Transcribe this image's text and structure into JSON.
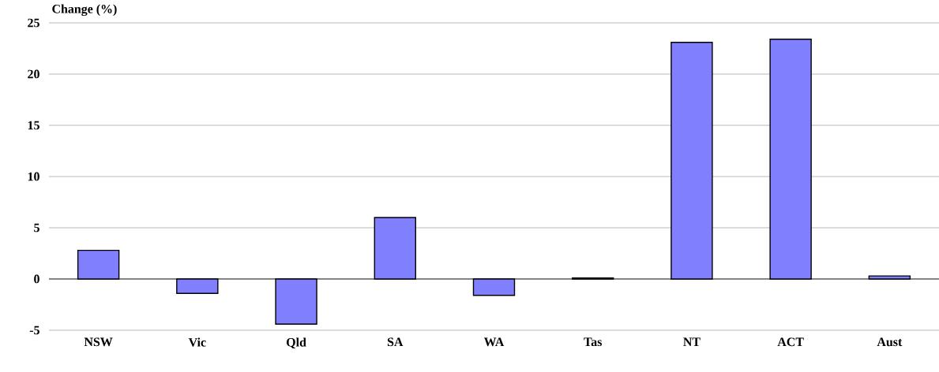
{
  "chart_data": {
    "type": "bar",
    "ylabel": "Change (%)",
    "categories": [
      "NSW",
      "Vic",
      "Qld",
      "SA",
      "WA",
      "Tas",
      "NT",
      "ACT",
      "Aust"
    ],
    "values": [
      2.8,
      -1.4,
      -4.4,
      6.0,
      -1.6,
      0.1,
      23.1,
      23.4,
      0.3
    ],
    "color": "#8080ff",
    "ylim": [
      -5,
      25
    ],
    "yticks": [
      -5,
      0,
      5,
      10,
      15,
      20,
      25
    ],
    "grid": "y"
  }
}
